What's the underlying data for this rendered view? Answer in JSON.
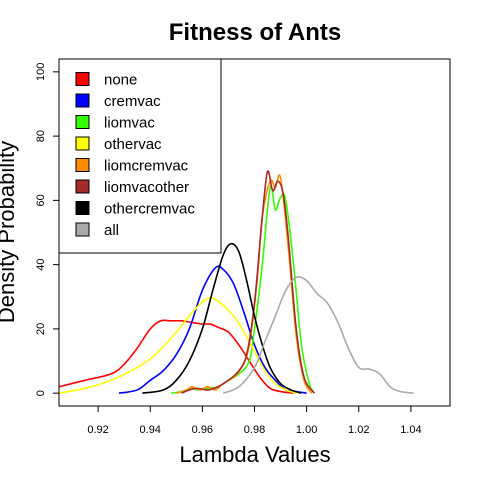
{
  "chart_data": {
    "type": "line",
    "title": "Fitness of Ants",
    "xlabel": "Lambda Values",
    "ylabel": "Density Probability",
    "xlim": [
      0.905,
      1.055
    ],
    "ylim": [
      -4,
      104
    ],
    "x_ticks": [
      0.92,
      0.94,
      0.96,
      0.98,
      1.0,
      1.02,
      1.04
    ],
    "x_tick_labels": [
      "0.92",
      "0.94",
      "0.96",
      "0.98",
      "1.00",
      "1.02",
      "1.04"
    ],
    "y_ticks": [
      0,
      20,
      40,
      60,
      80,
      100
    ],
    "y_tick_labels": [
      "0",
      "20",
      "40",
      "60",
      "80",
      "100"
    ],
    "grid": false,
    "legend_position": "top-left",
    "series": [
      {
        "name": "none",
        "color": "#FF0000",
        "x": [
          0.905,
          0.915,
          0.925,
          0.93,
          0.935,
          0.94,
          0.944,
          0.948,
          0.952,
          0.956,
          0.96,
          0.963,
          0.966,
          0.97,
          0.974,
          0.978,
          0.982,
          0.986,
          0.99,
          0.995
        ],
        "y": [
          2,
          4,
          6,
          9,
          14,
          20,
          22.5,
          22.5,
          22.5,
          22,
          21.5,
          21.5,
          20.5,
          19,
          15,
          10,
          5,
          1.5,
          0.5,
          0
        ]
      },
      {
        "name": "cremvac",
        "color": "#0000FF",
        "x": [
          0.928,
          0.935,
          0.94,
          0.945,
          0.95,
          0.955,
          0.96,
          0.965,
          0.968,
          0.972,
          0.976,
          0.98,
          0.984,
          0.988,
          0.992,
          0.996,
          1.0
        ],
        "y": [
          0,
          1,
          4,
          7,
          12,
          20,
          32,
          39,
          38.5,
          34,
          25,
          15,
          8,
          4,
          1,
          0.5,
          0
        ]
      },
      {
        "name": "liomvac",
        "color": "#33FF00",
        "x": [
          0.948,
          0.952,
          0.956,
          0.958,
          0.962,
          0.966,
          0.97,
          0.974,
          0.978,
          0.98,
          0.983,
          0.986,
          0.988,
          0.99,
          0.992,
          0.995,
          0.998,
          1.001,
          1.003
        ],
        "y": [
          0,
          0.5,
          1.5,
          1,
          1.5,
          2,
          4,
          6,
          10,
          20,
          40,
          64,
          57,
          61,
          60,
          40,
          15,
          3,
          0
        ]
      },
      {
        "name": "othervac",
        "color": "#FFFF00",
        "x": [
          0.905,
          0.915,
          0.925,
          0.935,
          0.942,
          0.95,
          0.956,
          0.962,
          0.967,
          0.972,
          0.976,
          0.98,
          0.984,
          0.988,
          0.992,
          0.996
        ],
        "y": [
          0,
          1.5,
          4,
          8,
          12,
          19,
          25,
          29.5,
          28,
          24,
          19,
          13,
          7,
          3,
          1,
          0
        ]
      },
      {
        "name": "liomcremvac",
        "color": "#FF8C00",
        "x": [
          0.95,
          0.954,
          0.956,
          0.959,
          0.962,
          0.965,
          0.968,
          0.972,
          0.975,
          0.978,
          0.981,
          0.983,
          0.986,
          0.988,
          0.99,
          0.993,
          0.996,
          0.999,
          1.002
        ],
        "y": [
          0,
          1,
          2,
          1,
          2,
          1,
          3,
          5,
          8,
          15,
          35,
          55,
          66,
          64,
          67,
          45,
          18,
          4,
          0
        ]
      },
      {
        "name": "liomvacother",
        "color": "#A52A2A",
        "x": [
          0.952,
          0.955,
          0.958,
          0.962,
          0.966,
          0.97,
          0.974,
          0.977,
          0.98,
          0.983,
          0.985,
          0.987,
          0.989,
          0.991,
          0.993,
          0.996,
          0.999,
          1.003
        ],
        "y": [
          0,
          1,
          1.5,
          1,
          2,
          4,
          7,
          12,
          28,
          55,
          69,
          63,
          66,
          62,
          48,
          20,
          5,
          0
        ]
      },
      {
        "name": "othercremvac",
        "color": "#000000",
        "x": [
          0.937,
          0.945,
          0.95,
          0.955,
          0.96,
          0.964,
          0.968,
          0.971,
          0.974,
          0.977,
          0.98,
          0.983,
          0.986,
          0.99,
          0.994,
          0.998
        ],
        "y": [
          0,
          1,
          4,
          10,
          20,
          32,
          43,
          46.5,
          44,
          35,
          24,
          15,
          8,
          3,
          1,
          0
        ]
      },
      {
        "name": "all",
        "color": "#AAAAAA",
        "x": [
          0.968,
          0.974,
          0.98,
          0.984,
          0.988,
          0.992,
          0.996,
          1.0,
          1.004,
          1.008,
          1.012,
          1.016,
          1.02,
          1.024,
          1.028,
          1.032,
          1.036,
          1.041
        ],
        "y": [
          0,
          2,
          8,
          16,
          24,
          32,
          36,
          35,
          31,
          28,
          22,
          14,
          8,
          7.5,
          6,
          2,
          0.5,
          0
        ]
      }
    ]
  }
}
